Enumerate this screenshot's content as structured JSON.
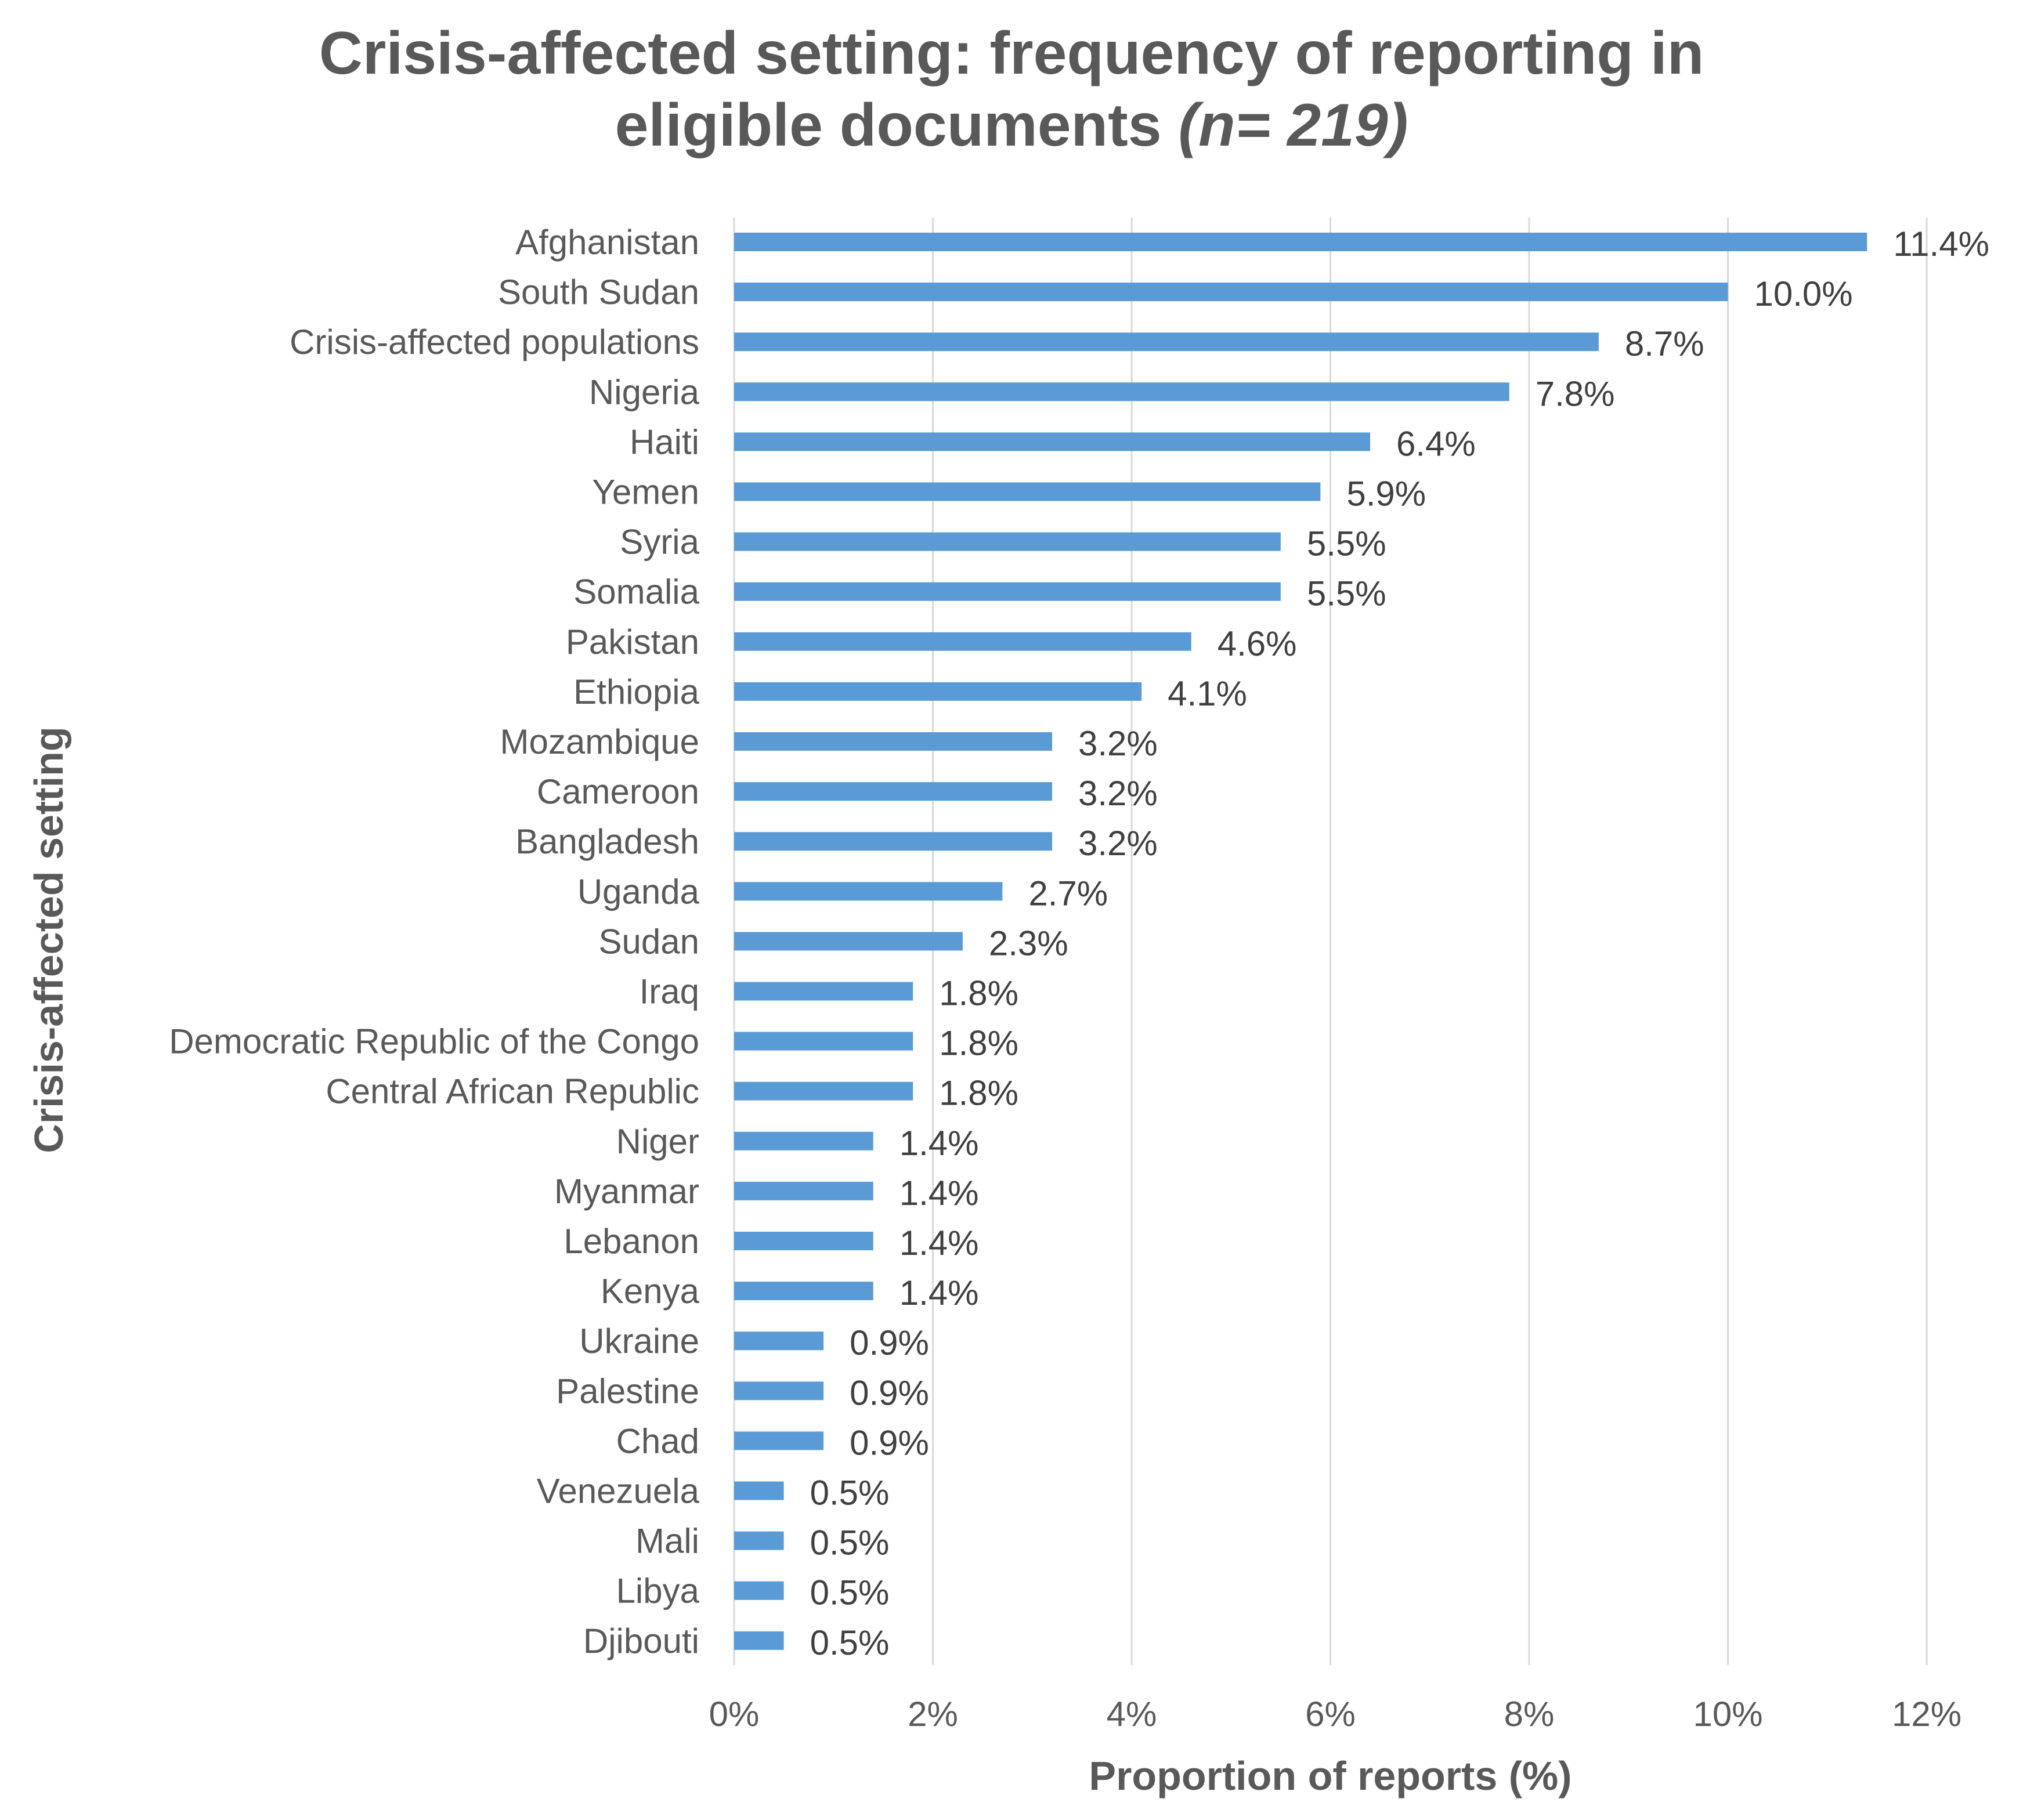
{
  "chart_data": {
    "type": "bar",
    "orientation": "horizontal",
    "title_main": "Crisis-affected setting: frequency of reporting in",
    "title_line2": "eligible documents",
    "title_n": "(n= 219)",
    "xlabel": "Proportion of reports (%)",
    "ylabel": "Crisis-affected setting",
    "xlim": [
      0,
      12
    ],
    "xticks": [
      "0%",
      "2%",
      "4%",
      "6%",
      "8%",
      "10%",
      "12%"
    ],
    "grid": "vertical",
    "bar_color": "#5B9BD5",
    "categories": [
      "Afghanistan",
      "South Sudan",
      "Crisis-affected populations",
      "Nigeria",
      "Haiti",
      "Yemen",
      "Syria",
      "Somalia",
      "Pakistan",
      "Ethiopia",
      "Mozambique",
      "Cameroon",
      "Bangladesh",
      "Uganda",
      "Sudan",
      "Iraq",
      "Democratic Republic of the Congo",
      "Central African Republic",
      "Niger",
      "Myanmar",
      "Lebanon",
      "Kenya",
      "Ukraine",
      "Palestine",
      "Chad",
      "Venezuela",
      "Mali",
      "Libya",
      "Djibouti"
    ],
    "values": [
      11.4,
      10.0,
      8.7,
      7.8,
      6.4,
      5.9,
      5.5,
      5.5,
      4.6,
      4.1,
      3.2,
      3.2,
      3.2,
      2.7,
      2.3,
      1.8,
      1.8,
      1.8,
      1.4,
      1.4,
      1.4,
      1.4,
      0.9,
      0.9,
      0.9,
      0.5,
      0.5,
      0.5,
      0.5
    ],
    "value_labels": [
      "11.4%",
      "10.0%",
      "8.7%",
      "7.8%",
      "6.4%",
      "5.9%",
      "5.5%",
      "5.5%",
      "4.6%",
      "4.1%",
      "3.2%",
      "3.2%",
      "3.2%",
      "2.7%",
      "2.3%",
      "1.8%",
      "1.8%",
      "1.8%",
      "1.4%",
      "1.4%",
      "1.4%",
      "1.4%",
      "0.9%",
      "0.9%",
      "0.9%",
      "0.5%",
      "0.5%",
      "0.5%",
      "0.5%"
    ]
  }
}
